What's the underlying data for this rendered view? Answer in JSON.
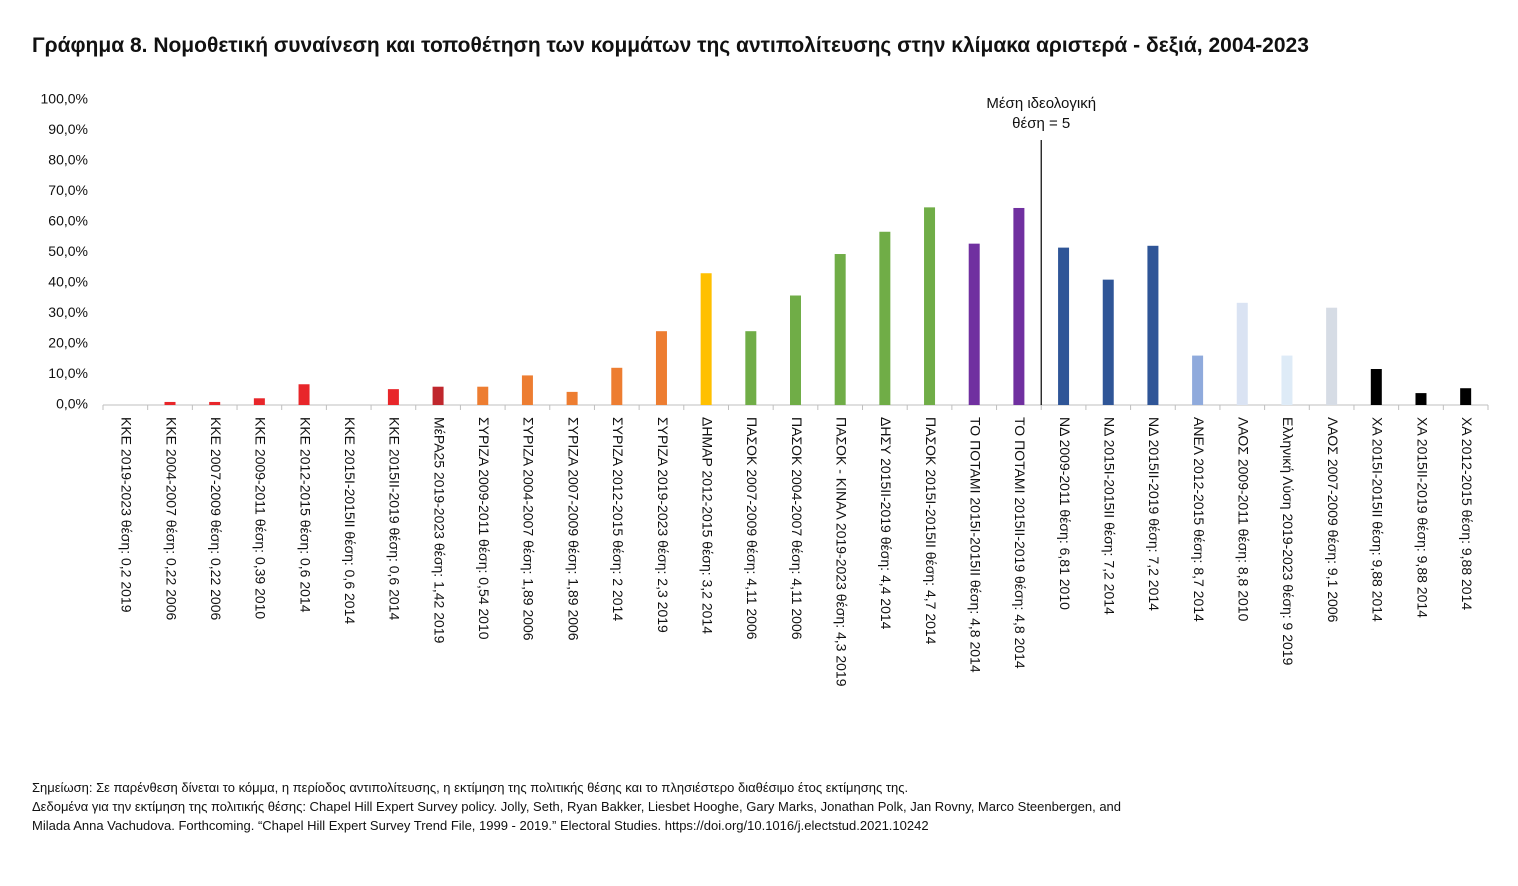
{
  "chart_data": {
    "type": "bar",
    "title": "Γράφημα 8. Νομοθετική συναίνεση και τοποθέτηση των κομμάτων της αντιπολίτευσης στην κλίμακα αριστερά - δεξιά, 2004-2023",
    "categories": [
      "ΚΚΕ 2019-2023 θέση: 0,2 2019",
      "ΚΚΕ 2004-2007 θέση: 0,22 2006",
      "ΚΚΕ 2007-2009 θέση: 0,22 2006",
      "ΚΚΕ 2009-2011 θέση: 0,39 2010",
      "ΚΚΕ 2012-2015 θέση: 0,6 2014",
      "ΚΚΕ 2015Ι-2015ΙΙ θέση: 0,6 2014",
      "ΚΚΕ 2015ΙΙ-2019 θέση: 0,6 2014",
      "ΜέΡΑ25 2019-2023 θέση: 1,42 2019",
      "ΣΥΡΙΖΑ 2009-2011 θέση: 0,54 2010",
      "ΣΥΡΙΖΑ 2004-2007 θέση: 1,89 2006",
      "ΣΥΡΙΖΑ 2007-2009 θέση: 1,89 2006",
      "ΣΥΡΙΖΑ 2012-2015 θέση: 2 2014",
      "ΣΥΡΙΖΑ 2019-2023 θέση: 2,3 2019",
      "ΔΗΜΑΡ 2012-2015 θέση: 3,2 2014",
      "ΠΑΣΟΚ 2007-2009 θέση: 4,11 2006",
      "ΠΑΣΟΚ 2004-2007 θέση: 4,11 2006",
      "ΠΑΣΟΚ - ΚΙΝΑΛ 2019-2023 θέση: 4,3 2019",
      "ΔΗΣΥ 2015ΙΙ-2019 θέση: 4,4 2014",
      "ΠΑΣΟΚ 2015Ι-2015ΙΙ θέση: 4,7 2014",
      "ΤΟ ΠΟΤΑΜΙ 2015Ι-2015ΙΙ θέση: 4,8 2014",
      "ΤΟ ΠΟΤΑΜΙ 2015ΙΙ-2019 θέση: 4,8 2014",
      "ΝΔ 2009-2011 θέση: 6,81 2010",
      "ΝΔ 2015Ι-2015ΙΙ θέση: 7,2 2014",
      "ΝΔ 2015ΙΙ-2019 θέση: 7,2 2014",
      "ΑΝΕΛ 2012-2015 θέση: 8,7 2014",
      "ΛΑΟΣ 2009-2011 θέση: 8,8 2010",
      "Ελληνική Λύση 2019-2023 θέση: 9 2019",
      "ΛΑΟΣ 2007-2009 θέση: 9,1 2006",
      "ΧΑ 2015Ι-2015ΙΙ θέση: 9,88 2014",
      "ΧΑ 2015ΙΙ-2019 θέση: 9,88 2014",
      "ΧΑ 2012-2015 θέση: 9,88 2014"
    ],
    "values": [
      0,
      1.0,
      1.0,
      2.2,
      6.8,
      0,
      5.2,
      6.0,
      6.0,
      9.7,
      4.3,
      12.2,
      24.2,
      43.2,
      24.2,
      35.9,
      49.5,
      56.8,
      64.8,
      52.9,
      64.6,
      51.6,
      41.1,
      52.2,
      16.2,
      33.5,
      16.2,
      31.9,
      11.8,
      3.9,
      5.5
    ],
    "colors": [
      "#e8262a",
      "#e8262a",
      "#e8262a",
      "#e8262a",
      "#e8262a",
      "#e8262a",
      "#e8262a",
      "#c0272d",
      "#ed7d31",
      "#ed7d31",
      "#ed7d31",
      "#ed7d31",
      "#ed7d31",
      "#ffc000",
      "#70ad47",
      "#70ad47",
      "#70ad47",
      "#70ad47",
      "#70ad47",
      "#7030a0",
      "#7030a0",
      "#2f5597",
      "#2f5597",
      "#2f5597",
      "#8faadc",
      "#dae3f3",
      "#deebf7",
      "#d6dce5",
      "#000000",
      "#000000",
      "#000000"
    ],
    "ylim": [
      0,
      100
    ],
    "yticks": [
      {
        "value": 0,
        "label": "0,0%"
      },
      {
        "value": 10,
        "label": "10,0%"
      },
      {
        "value": 20,
        "label": "20,0%"
      },
      {
        "value": 30,
        "label": "30,0%"
      },
      {
        "value": 40,
        "label": "40,0%"
      },
      {
        "value": 50,
        "label": "50,0%"
      },
      {
        "value": 60,
        "label": "60,0%"
      },
      {
        "value": 70,
        "label": "70,0%"
      },
      {
        "value": 80,
        "label": "80,0%"
      },
      {
        "value": 90,
        "label": "90,0%"
      },
      {
        "value": 100,
        "label": "100,0%"
      }
    ],
    "annotation": [
      "Μέση ιδεολογική",
      "θέση = 5"
    ],
    "notes": [
      "Σημείωση: Σε παρένθεση δίνεται το κόμμα, η περίοδος αντιπολίτευσης, η εκτίμηση της πολιτικής θέσης και το πλησιέστερο διαθέσιμο έτος εκτίμησης της.",
      "Δεδομένα για την εκτίμηση της πολιτικής θέσης: Chapel Hill Expert Survey policy. Jolly, Seth, Ryan Bakker, Liesbet Hooghe, Gary Marks, Jonathan Polk, Jan Rovny, Marco Steenbergen, and",
      "Milada Anna Vachudova. Forthcoming. “Chapel Hill Expert Survey Trend File, 1999 - 2019.” Electoral Studies. https://doi.org/10.1016/j.electstud.2021.10242"
    ]
  }
}
